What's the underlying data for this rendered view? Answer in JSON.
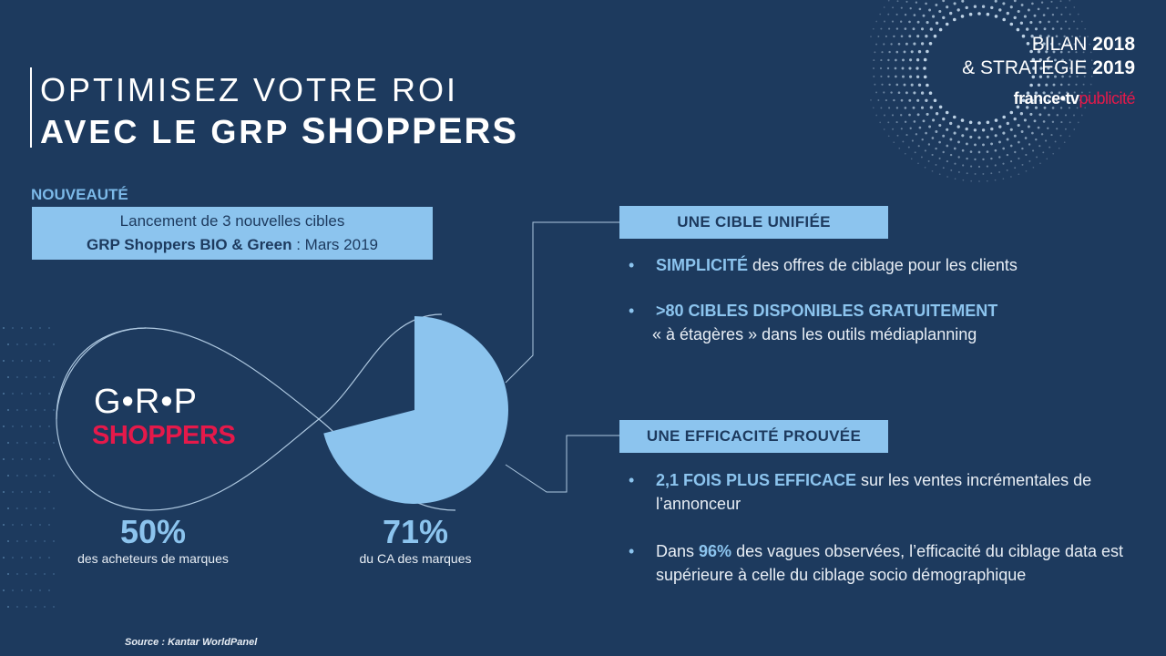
{
  "header": {
    "title_line1": "OPTIMISEZ VOTRE ROI",
    "title_line2_prefix": "AVEC LE GRP ",
    "title_line2_bold": "SHOPPERS"
  },
  "brand": {
    "line1_prefix": "BILAN ",
    "line1_year": "2018",
    "line2_prefix": "& STRATÉGIE ",
    "line2_year": "2019",
    "logo_main": "france•tv",
    "logo_pub": "publicité"
  },
  "nouveaute": {
    "label": "NOUVEAUTÉ",
    "line1": "Lancement de 3 nouvelles cibles",
    "line2_bold": "GRP Shoppers BIO & Green",
    "line2_rest": " : Mars 2019"
  },
  "logo": {
    "grp": "G•R•P",
    "shoppers": "SHOPPERS"
  },
  "stats": [
    {
      "value": "50%",
      "label": "des acheteurs de marques"
    },
    {
      "value": "71%",
      "label": "du CA des marques"
    }
  ],
  "chart_data": {
    "type": "pie",
    "values": [
      71,
      29
    ],
    "colors": {
      "fill": "#8cc4ee",
      "outline": "#aec8e0"
    }
  },
  "section1": {
    "title": "UNE CIBLE UNIFIÉE",
    "bullets": [
      {
        "hl": "SIMPLICITÉ",
        "rest": " des offres de ciblage pour les clients"
      },
      {
        "hl": ">80 CIBLES DISPONIBLES GRATUITEMENT",
        "rest": "« à étagères » dans les outils médiaplanning"
      }
    ]
  },
  "section2": {
    "title": "UNE EFFICACITÉ PROUVÉE",
    "bullets": [
      {
        "hl": "2,1 FOIS PLUS EFFICACE",
        "rest": " sur les ventes incrémentales de l’annonceur"
      },
      {
        "pre": "Dans ",
        "hl": "96%",
        "rest": " des vagues observées, l’efficacité du ciblage data est supérieure à celle du ciblage socio démographique"
      }
    ]
  },
  "source": "Source : Kantar WorldPanel",
  "colors": {
    "background": "#1d3a5e",
    "accent": "#8cc4ee",
    "brand_red": "#e5194a"
  }
}
